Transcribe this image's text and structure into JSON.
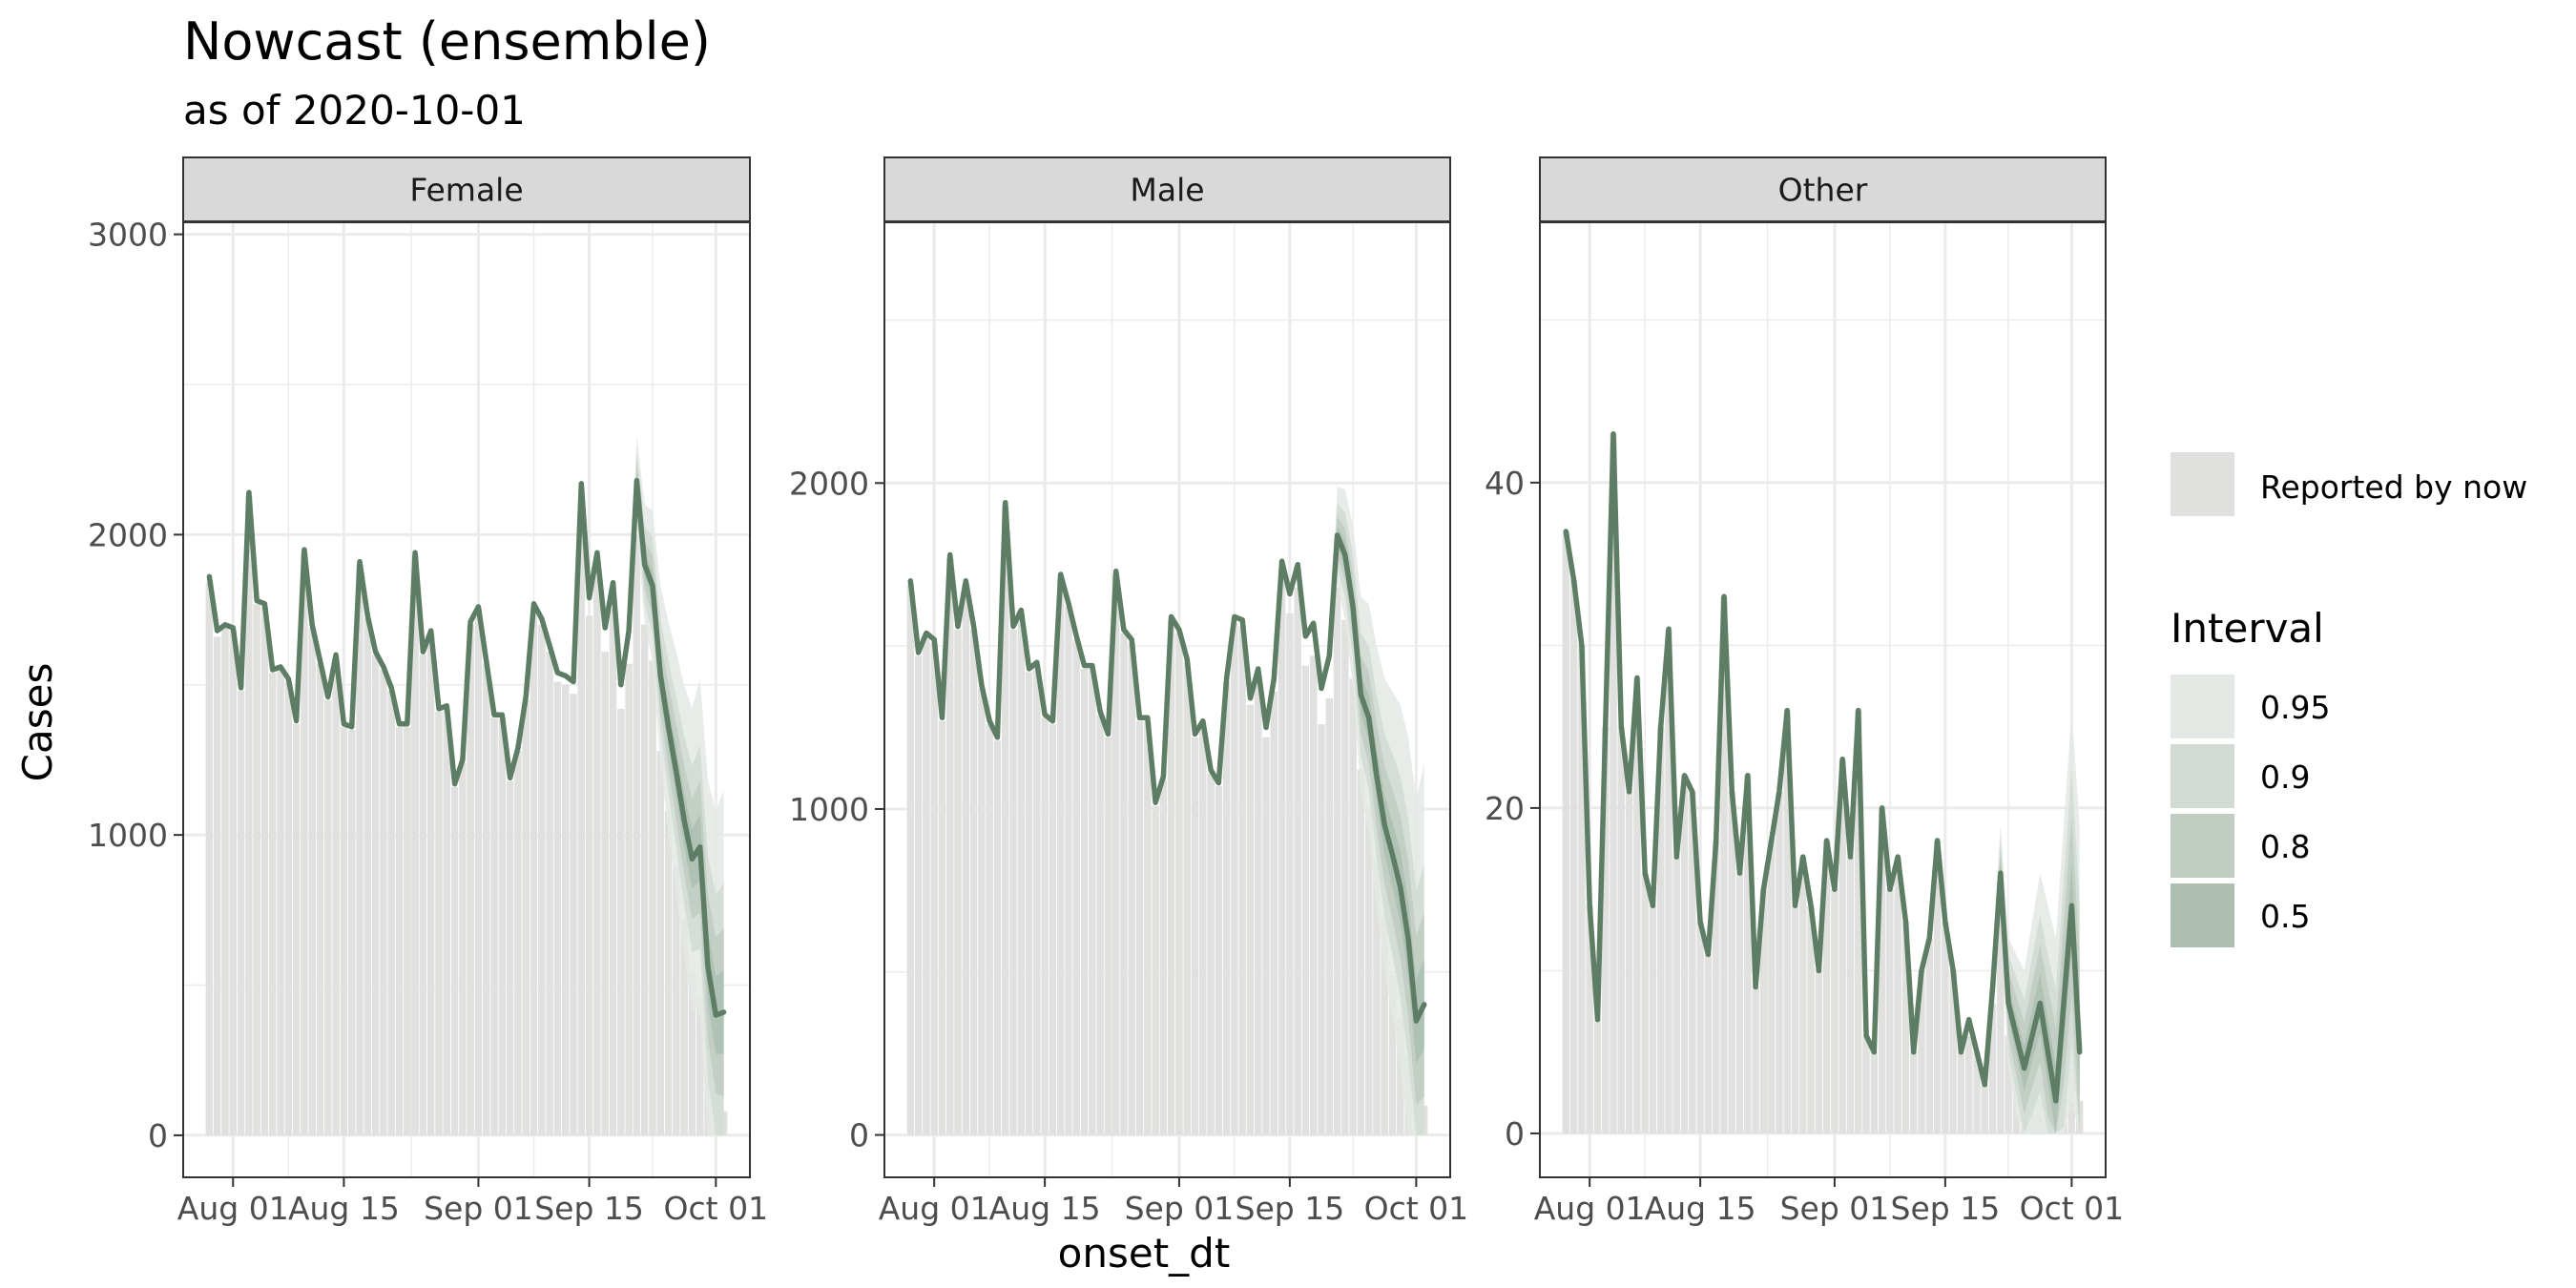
{
  "chart_data": {
    "type": "area",
    "title": "Nowcast (ensemble)",
    "subtitle": "as of 2020-10-01",
    "xlabel": "onset_dt",
    "ylabel": "Cases",
    "x_start": "2020-07-29",
    "x_ticks": [
      "Aug 01",
      "Aug 15",
      "Sep 01",
      "Sep 15",
      "Oct 01"
    ],
    "x_tick_dates": [
      "2020-08-01",
      "2020-08-15",
      "2020-09-01",
      "2020-09-15",
      "2020-10-01"
    ],
    "grid": true,
    "colors": {
      "line": "#5e7d65",
      "reported": "#e0e1df",
      "band_95": "#e4e9e5",
      "band_90": "#d1dad3",
      "band_80": "#bfcdc2",
      "band_50": "#adbfb1",
      "strip_bg": "#d9d9d9",
      "grid": "#ebebeb"
    },
    "legend": {
      "position": "right",
      "reported_label": "Reported by now",
      "interval_title": "Interval",
      "intervals": [
        "0.95",
        "0.9",
        "0.8",
        "0.5"
      ]
    },
    "panels": [
      {
        "name": "Female",
        "ylim": [
          -140,
          3040
        ],
        "y_ticks": [
          0,
          1000,
          2000,
          3000
        ],
        "nowcast": [
          1860,
          1680,
          1700,
          1690,
          1490,
          2140,
          1780,
          1770,
          1550,
          1560,
          1520,
          1380,
          1950,
          1700,
          1580,
          1460,
          1600,
          1370,
          1360,
          1910,
          1730,
          1610,
          1560,
          1490,
          1370,
          1370,
          1940,
          1610,
          1680,
          1420,
          1430,
          1170,
          1250,
          1710,
          1760,
          1580,
          1400,
          1400,
          1190,
          1290,
          1460,
          1770,
          1720,
          1630,
          1540,
          1530,
          1510,
          2170,
          1790,
          1940,
          1690,
          1840,
          1500,
          1680,
          2180,
          1900,
          1830,
          1530,
          1360,
          1210,
          1050,
          920,
          960,
          560,
          400,
          410
        ],
        "reported": [
          1840,
          1660,
          1690,
          1680,
          1480,
          2130,
          1770,
          1760,
          1540,
          1550,
          1510,
          1370,
          1940,
          1690,
          1570,
          1450,
          1590,
          1360,
          1350,
          1900,
          1720,
          1600,
          1550,
          1480,
          1360,
          1360,
          1930,
          1600,
          1670,
          1410,
          1420,
          1160,
          1240,
          1700,
          1750,
          1570,
          1390,
          1390,
          1180,
          1280,
          1450,
          1750,
          1700,
          1610,
          1510,
          1500,
          1470,
          2120,
          1730,
          1880,
          1610,
          1750,
          1420,
          1570,
          2000,
          1700,
          1580,
          1280,
          1080,
          900,
          720,
          540,
          460,
          340,
          130,
          80
        ],
        "band50_half": [
          0,
          0,
          0,
          0,
          0,
          0,
          0,
          0,
          0,
          0,
          0,
          0,
          0,
          0,
          0,
          0,
          0,
          0,
          0,
          0,
          0,
          0,
          0,
          0,
          0,
          0,
          0,
          0,
          0,
          0,
          0,
          0,
          0,
          0,
          0,
          0,
          0,
          0,
          0,
          0,
          0,
          0,
          0,
          0,
          0,
          0,
          0,
          0,
          0,
          0,
          0,
          0,
          0,
          0,
          30,
          40,
          50,
          60,
          70,
          80,
          90,
          100,
          110,
          120,
          130,
          140
        ],
        "band80_half": [
          0,
          0,
          0,
          0,
          0,
          0,
          0,
          0,
          0,
          0,
          0,
          0,
          0,
          0,
          0,
          0,
          0,
          0,
          0,
          0,
          0,
          0,
          0,
          0,
          0,
          0,
          0,
          0,
          0,
          0,
          0,
          0,
          0,
          0,
          0,
          0,
          0,
          0,
          0,
          0,
          0,
          0,
          0,
          0,
          0,
          0,
          0,
          0,
          0,
          0,
          0,
          0,
          0,
          0,
          60,
          80,
          100,
          120,
          140,
          160,
          180,
          200,
          220,
          240,
          260,
          280
        ],
        "band90_half": [
          0,
          0,
          0,
          0,
          0,
          0,
          0,
          0,
          0,
          0,
          0,
          0,
          0,
          0,
          0,
          0,
          0,
          0,
          0,
          0,
          0,
          0,
          0,
          0,
          0,
          0,
          0,
          0,
          0,
          0,
          0,
          0,
          0,
          0,
          0,
          0,
          0,
          0,
          0,
          0,
          0,
          0,
          0,
          0,
          0,
          0,
          0,
          0,
          0,
          0,
          0,
          0,
          0,
          0,
          100,
          130,
          160,
          190,
          220,
          250,
          280,
          310,
          340,
          370,
          400,
          430
        ],
        "band95_half": [
          0,
          0,
          0,
          0,
          0,
          0,
          0,
          0,
          0,
          0,
          0,
          0,
          0,
          0,
          0,
          0,
          0,
          0,
          0,
          0,
          0,
          0,
          0,
          0,
          0,
          0,
          0,
          0,
          0,
          0,
          0,
          0,
          0,
          0,
          0,
          0,
          0,
          0,
          0,
          0,
          0,
          0,
          0,
          0,
          0,
          0,
          0,
          0,
          0,
          0,
          0,
          0,
          0,
          0,
          150,
          200,
          250,
          300,
          350,
          400,
          450,
          500,
          560,
          620,
          680,
          740
        ]
      },
      {
        "name": "Male",
        "ylim": [
          -130,
          2800
        ],
        "y_ticks": [
          0,
          1000,
          2000
        ],
        "nowcast": [
          1700,
          1480,
          1540,
          1520,
          1280,
          1780,
          1560,
          1700,
          1560,
          1380,
          1270,
          1220,
          1940,
          1560,
          1610,
          1430,
          1450,
          1290,
          1270,
          1720,
          1630,
          1530,
          1440,
          1440,
          1300,
          1230,
          1730,
          1550,
          1520,
          1280,
          1280,
          1020,
          1100,
          1590,
          1550,
          1460,
          1230,
          1270,
          1120,
          1080,
          1400,
          1590,
          1580,
          1340,
          1430,
          1250,
          1400,
          1760,
          1660,
          1750,
          1530,
          1570,
          1370,
          1470,
          1840,
          1780,
          1620,
          1350,
          1280,
          1100,
          950,
          860,
          760,
          600,
          350,
          400
        ],
        "reported": [
          1690,
          1470,
          1530,
          1510,
          1270,
          1770,
          1550,
          1690,
          1550,
          1370,
          1260,
          1210,
          1930,
          1550,
          1600,
          1420,
          1440,
          1280,
          1260,
          1710,
          1620,
          1520,
          1430,
          1430,
          1290,
          1220,
          1720,
          1540,
          1510,
          1270,
          1270,
          1010,
          1090,
          1580,
          1540,
          1450,
          1220,
          1260,
          1110,
          1070,
          1390,
          1570,
          1560,
          1320,
          1400,
          1220,
          1360,
          1710,
          1600,
          1680,
          1440,
          1470,
          1260,
          1340,
          1680,
          1580,
          1400,
          1120,
          1000,
          840,
          670,
          490,
          360,
          240,
          110,
          90
        ],
        "band50_half": [
          0,
          0,
          0,
          0,
          0,
          0,
          0,
          0,
          0,
          0,
          0,
          0,
          0,
          0,
          0,
          0,
          0,
          0,
          0,
          0,
          0,
          0,
          0,
          0,
          0,
          0,
          0,
          0,
          0,
          0,
          0,
          0,
          0,
          0,
          0,
          0,
          0,
          0,
          0,
          0,
          0,
          0,
          0,
          0,
          0,
          0,
          0,
          0,
          0,
          0,
          0,
          0,
          0,
          0,
          30,
          40,
          50,
          60,
          70,
          80,
          90,
          100,
          110,
          120,
          130,
          140
        ],
        "band80_half": [
          0,
          0,
          0,
          0,
          0,
          0,
          0,
          0,
          0,
          0,
          0,
          0,
          0,
          0,
          0,
          0,
          0,
          0,
          0,
          0,
          0,
          0,
          0,
          0,
          0,
          0,
          0,
          0,
          0,
          0,
          0,
          0,
          0,
          0,
          0,
          0,
          0,
          0,
          0,
          0,
          0,
          0,
          0,
          0,
          0,
          0,
          0,
          0,
          0,
          0,
          0,
          0,
          0,
          0,
          60,
          80,
          100,
          120,
          140,
          160,
          180,
          200,
          220,
          240,
          260,
          280
        ],
        "band90_half": [
          0,
          0,
          0,
          0,
          0,
          0,
          0,
          0,
          0,
          0,
          0,
          0,
          0,
          0,
          0,
          0,
          0,
          0,
          0,
          0,
          0,
          0,
          0,
          0,
          0,
          0,
          0,
          0,
          0,
          0,
          0,
          0,
          0,
          0,
          0,
          0,
          0,
          0,
          0,
          0,
          0,
          0,
          0,
          0,
          0,
          0,
          0,
          0,
          0,
          0,
          0,
          0,
          0,
          0,
          100,
          130,
          160,
          190,
          220,
          250,
          280,
          310,
          340,
          370,
          400,
          430
        ],
        "band95_half": [
          0,
          0,
          0,
          0,
          0,
          0,
          0,
          0,
          0,
          0,
          0,
          0,
          0,
          0,
          0,
          0,
          0,
          0,
          0,
          0,
          0,
          0,
          0,
          0,
          0,
          0,
          0,
          0,
          0,
          0,
          0,
          0,
          0,
          0,
          0,
          0,
          0,
          0,
          0,
          0,
          0,
          0,
          0,
          0,
          0,
          0,
          0,
          0,
          0,
          0,
          0,
          0,
          0,
          0,
          150,
          200,
          250,
          300,
          350,
          400,
          450,
          500,
          560,
          620,
          680,
          740
        ]
      },
      {
        "name": "Other",
        "ylim": [
          -2.7,
          56
        ],
        "y_ticks": [
          0,
          20,
          40
        ],
        "nowcast": [
          37,
          34,
          30,
          14,
          7,
          25,
          43,
          25,
          21,
          28,
          16,
          14,
          25,
          31,
          17,
          22,
          21,
          13,
          11,
          18,
          33,
          21,
          16,
          22,
          9,
          15,
          18,
          21,
          26,
          14,
          17,
          14,
          10,
          18,
          15,
          23,
          17,
          26,
          6,
          5,
          20,
          15,
          17,
          13,
          5,
          10,
          12,
          18,
          13,
          10,
          5,
          7,
          5,
          3,
          9,
          16,
          8,
          6,
          4,
          6,
          8,
          5,
          2,
          8,
          14,
          5
        ],
        "reported": [
          37,
          34,
          30,
          14,
          7,
          25,
          43,
          25,
          21,
          28,
          16,
          14,
          25,
          31,
          17,
          22,
          21,
          13,
          11,
          18,
          33,
          21,
          16,
          22,
          9,
          15,
          18,
          21,
          26,
          14,
          17,
          14,
          10,
          18,
          15,
          23,
          17,
          26,
          6,
          5,
          20,
          15,
          17,
          13,
          5,
          10,
          12,
          18,
          13,
          10,
          5,
          6,
          5,
          3,
          8,
          13,
          6,
          5,
          3,
          4,
          5,
          3,
          1,
          4,
          6,
          2
        ],
        "band50_half": [
          0,
          0,
          0,
          0,
          0,
          0,
          0,
          0,
          0,
          0,
          0,
          0,
          0,
          0,
          0,
          0,
          0,
          0,
          0,
          0,
          0,
          0,
          0,
          0,
          0,
          0,
          0,
          0,
          0,
          0,
          0,
          0,
          0,
          0,
          0,
          0,
          0,
          0,
          0,
          0,
          0,
          0,
          0,
          0,
          0,
          0,
          0,
          0,
          0,
          0,
          0,
          0,
          0,
          0,
          0.5,
          0.8,
          1,
          1.2,
          1.4,
          1.6,
          1.8,
          2,
          2.2,
          2.4,
          2.6,
          2.8
        ],
        "band80_half": [
          0,
          0,
          0,
          0,
          0,
          0,
          0,
          0,
          0,
          0,
          0,
          0,
          0,
          0,
          0,
          0,
          0,
          0,
          0,
          0,
          0,
          0,
          0,
          0,
          0,
          0,
          0,
          0,
          0,
          0,
          0,
          0,
          0,
          0,
          0,
          0,
          0,
          0,
          0,
          0,
          0,
          0,
          0,
          0,
          0,
          0,
          0,
          0,
          0,
          0,
          0,
          0,
          0,
          0,
          1,
          1.5,
          2,
          2.4,
          2.8,
          3.2,
          3.6,
          4,
          4.5,
          5,
          5.5,
          6
        ],
        "band90_half": [
          0,
          0,
          0,
          0,
          0,
          0,
          0,
          0,
          0,
          0,
          0,
          0,
          0,
          0,
          0,
          0,
          0,
          0,
          0,
          0,
          0,
          0,
          0,
          0,
          0,
          0,
          0,
          0,
          0,
          0,
          0,
          0,
          0,
          0,
          0,
          0,
          0,
          0,
          0,
          0,
          0,
          0,
          0,
          0,
          0,
          0,
          0,
          0,
          0,
          0,
          0,
          0,
          0,
          0,
          1.5,
          2.2,
          3,
          3.6,
          4.2,
          4.8,
          5.4,
          6,
          6.8,
          7.6,
          8.4,
          9.2
        ],
        "band95_half": [
          0,
          0,
          0,
          0,
          0,
          0,
          0,
          0,
          0,
          0,
          0,
          0,
          0,
          0,
          0,
          0,
          0,
          0,
          0,
          0,
          0,
          0,
          0,
          0,
          0,
          0,
          0,
          0,
          0,
          0,
          0,
          0,
          0,
          0,
          0,
          0,
          0,
          0,
          0,
          0,
          0,
          0,
          0,
          0,
          0,
          0,
          0,
          0,
          0,
          0,
          0,
          0,
          0,
          0,
          2,
          3,
          4,
          5,
          6,
          7,
          8,
          9,
          10,
          11,
          12,
          14
        ]
      }
    ]
  }
}
